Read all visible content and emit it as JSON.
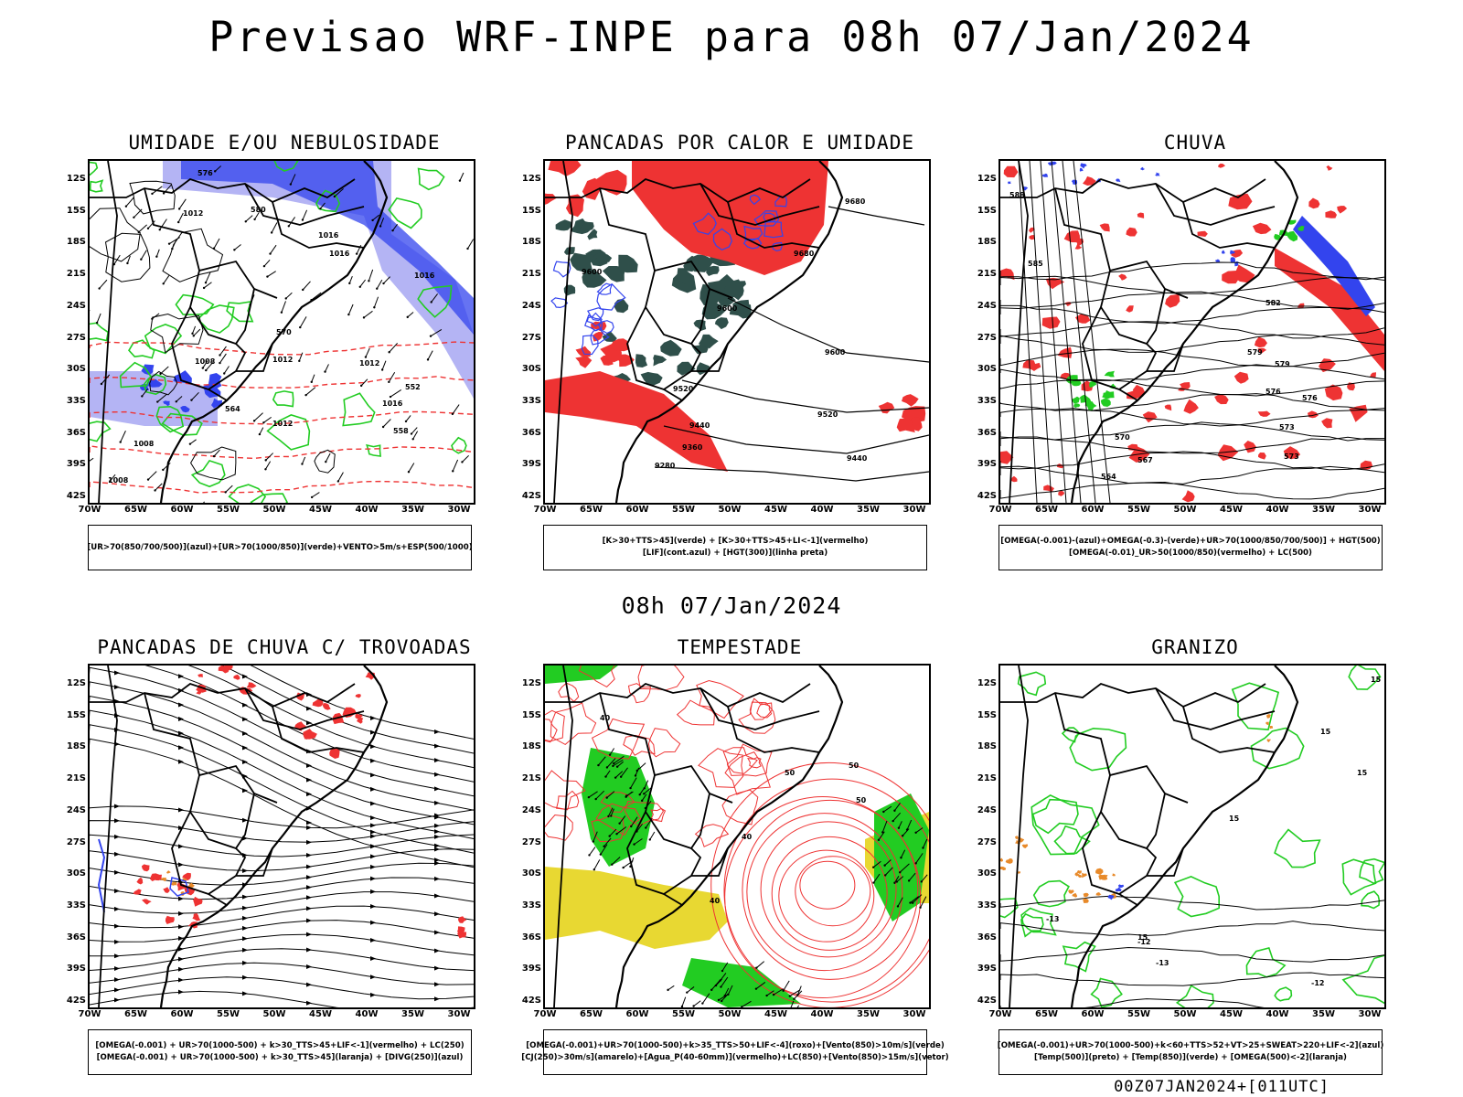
{
  "header": {
    "title": "Previsao WRF-INPE  para 08h 07/Jan/2024"
  },
  "mid_title": "08h 07/Jan/2024",
  "footer": {
    "stamp": "00Z07JAN2024+[011UTC]"
  },
  "axes": {
    "lat_labels": [
      "12S",
      "15S",
      "18S",
      "21S",
      "24S",
      "27S",
      "30S",
      "33S",
      "36S",
      "39S",
      "42S"
    ],
    "lon_labels": [
      "70W",
      "65W",
      "60W",
      "55W",
      "50W",
      "45W",
      "40W",
      "35W",
      "30W"
    ]
  },
  "colors": {
    "blue": "#3344ee",
    "lightblue": "#b4b4f4",
    "green": "#22cc22",
    "red": "#ee3333",
    "darkteal": "#2f4f4a",
    "yellow": "#e8d832",
    "orange": "#e88a2a",
    "black": "#000000"
  },
  "panels": [
    {
      "title": "UMIDADE E/OU NEBULOSIDADE",
      "legend": [
        "[UR>70(850/700/500)](azul)+[UR>70(1000/850)](verde)+VENTO>5m/s+ESP(500/1000)"
      ],
      "contour_labels": [
        "1012",
        "1012",
        "1016",
        "1016",
        "1012",
        "1008",
        "1012",
        "1016",
        "1016",
        "1008",
        "1008",
        "1012",
        "576",
        "580",
        "570",
        "564",
        "558",
        "552"
      ]
    },
    {
      "title": "PANCADAS POR CALOR E UMIDADE",
      "legend": [
        "[K>30+TTS>45](verde) + [K>30+TTS>45+LI<-1](vermelho)",
        "[LIF](cont.azul) + [HGT(300)](linha preta)"
      ],
      "contour_labels": [
        "9680",
        "9680",
        "9600",
        "9600",
        "9600",
        "9520",
        "9520",
        "9440",
        "9440",
        "9360",
        "9280"
      ]
    },
    {
      "title": "CHUVA",
      "legend": [
        "[OMEGA(-0.001)-(azul)+OMEGA(-0.3)-(verde)+UR>70(1000/850/700/500)] + HGT(500)",
        "[OMEGA(-0.01)_UR>50(1000/850)(vermelho) + LC(500)"
      ],
      "contour_labels": [
        "588",
        "585",
        "582",
        "579",
        "576",
        "573",
        "570",
        "567",
        "564",
        "579",
        "576",
        "573"
      ]
    },
    {
      "title": "PANCADAS DE CHUVA C/ TROVOADAS",
      "legend": [
        "[OMEGA(-0.001) + UR>70(1000-500) + k>30_TTS>45+LIF<-1](vermelho) + LC(250)",
        "[OMEGA(-0.001) + UR>70(1000-500) + k>30_TTS>45](laranja) + [DIVG(250)](azul)"
      ],
      "contour_labels": []
    },
    {
      "title": "TEMPESTADE",
      "legend": [
        "[OMEGA(-0.001)+UR>70(1000-500)+k>35_TTS>50+LIF<-4](roxo)+[Vento(850)>10m/s](verde)",
        "[CJ(250)>30m/s](amarelo)+[Agua_P(40-60mm)](vermelho)+LC(850)+[Vento(850)>15m/s](vetor)"
      ],
      "contour_labels": [
        "40",
        "50",
        "50",
        "40",
        "40",
        "50"
      ]
    },
    {
      "title": "GRANIZO",
      "legend": [
        "[OMEGA(-0.001)+UR>70(1000-500)+k<60+TTS>52+VT>25+SWEAT>220+LIF<-2](azul)",
        "[Temp(500)](preto) + [Temp(850)](verde) + [OMEGA(500)<-2](laranja)"
      ],
      "contour_labels": [
        "15",
        "15",
        "15",
        "15",
        "15",
        "-13",
        "-12",
        "-13",
        "-12"
      ]
    }
  ]
}
